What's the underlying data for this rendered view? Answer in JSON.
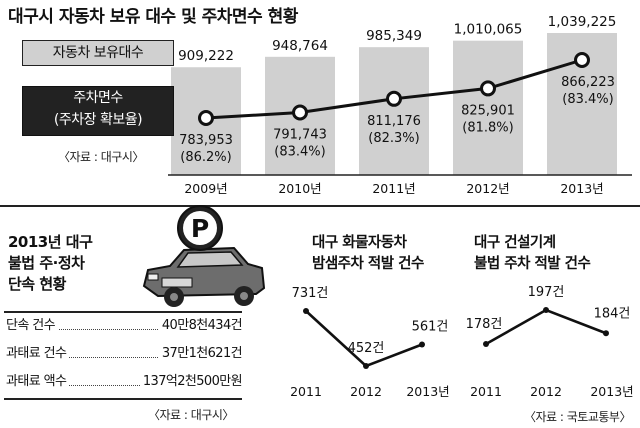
{
  "title": "대구시 자동차 보유 대수 및 주차면수 현황",
  "main_chart": {
    "type": "bar",
    "categories": [
      "2009년",
      "2010년",
      "2011년",
      "2012년",
      "2013년"
    ],
    "series": [
      {
        "name": "자동차 보유대수",
        "values": [
          909222,
          948764,
          985349,
          1010065,
          1039225
        ],
        "labels": [
          "909,222",
          "948,764",
          "985,349",
          "1,010,065",
          "1,039,225"
        ]
      },
      {
        "name": "주차면수",
        "name_sub": "(주차장 확보율)",
        "values": [
          783953,
          791743,
          811176,
          825901,
          866223
        ],
        "labels": [
          "783,953",
          "791,743",
          "811,176",
          "825,901",
          "866,223"
        ],
        "rates": [
          "(86.2%)",
          "(83.4%)",
          "(82.3%)",
          "(81.8%)",
          "(83.4%)"
        ]
      }
    ],
    "source": "〈자료 : 대구시〉",
    "colors": {
      "bar": "#d0d0d0",
      "line": "#111111"
    }
  },
  "enforcement": {
    "title_lines": [
      "2013년 대구",
      "불법 주·정차",
      "단속 현황"
    ],
    "rows": [
      {
        "label": "단속 건수",
        "value": "40만8천434건"
      },
      {
        "label": "과태료 건수",
        "value": "37만1천621건"
      },
      {
        "label": "과태료 액수",
        "value": "137억2천500만원"
      }
    ],
    "sign_letter": "P",
    "source": "〈자료 : 대구시〉"
  },
  "truck_chart": {
    "type": "line",
    "title_lines": [
      "대구 화물자동차",
      "밤샘주차 적발 건수"
    ],
    "categories": [
      "2011",
      "2012",
      "2013년"
    ],
    "values": [
      731,
      452,
      561
    ],
    "labels": [
      "731건",
      "452건",
      "561건"
    ]
  },
  "machine_chart": {
    "type": "line",
    "title_lines": [
      "대구 건설기계",
      "불법 주차 적발 건수"
    ],
    "categories": [
      "2011",
      "2012",
      "2013년"
    ],
    "values": [
      178,
      197,
      184
    ],
    "labels": [
      "178건",
      "197건",
      "184건"
    ]
  },
  "bottom_source": "〈자료 : 국토교통부〉"
}
